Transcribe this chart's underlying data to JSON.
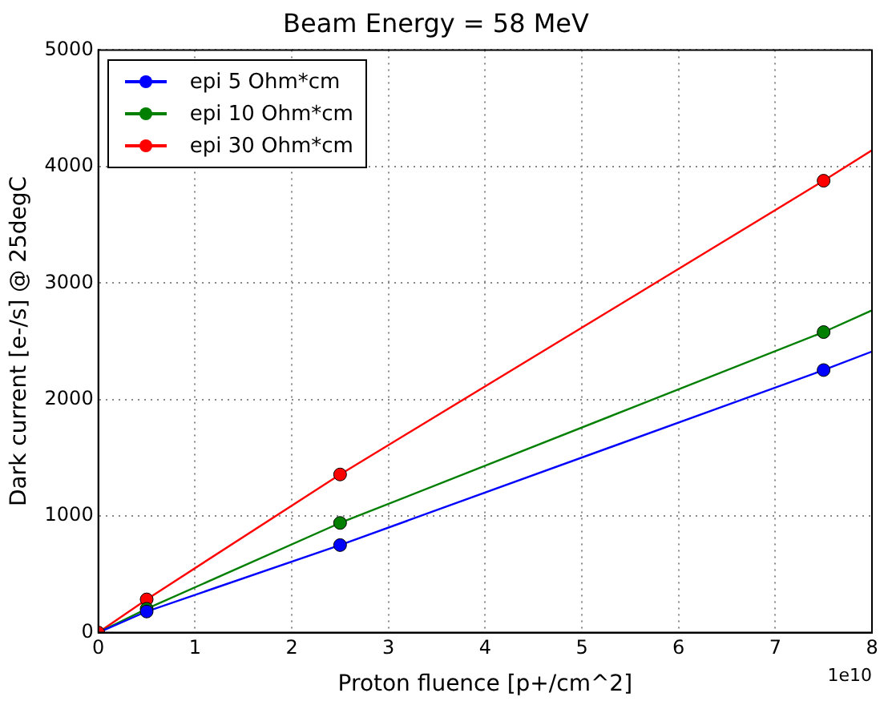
{
  "chart_data": {
    "type": "line",
    "title": "Beam Energy = 58 MeV",
    "xlabel": "Proton fluence [p+/cm^2]",
    "ylabel": "Dark current [e-/s] @ 25degC",
    "xlim": [
      0,
      8
    ],
    "xticks": [
      0,
      1,
      2,
      3,
      4,
      5,
      6,
      7,
      8
    ],
    "ylim": [
      0,
      5000
    ],
    "yticks": [
      0,
      1000,
      2000,
      3000,
      4000,
      5000
    ],
    "grid": true,
    "legend": "top left",
    "annotations": [
      "1e10"
    ],
    "series": [
      {
        "name": "epi 5 Ohm*cm",
        "type": "scatter",
        "color": "#0000ff",
        "marker": "circle",
        "x": [
          0.5,
          2.5,
          7.5
        ],
        "values": [
          181,
          751,
          2253
        ]
      },
      {
        "name": "epi 10 Ohm*cm",
        "type": "scatter",
        "color": "#007f00",
        "marker": "circle",
        "x": [
          0.5,
          2.5,
          7.5
        ],
        "values": [
          204,
          941,
          2579
        ]
      },
      {
        "name": "epi 30 Ohm*cm",
        "type": "scatter",
        "color": "#ff0000",
        "marker": "circle",
        "x": [
          0,
          0.5,
          2.5,
          7.5
        ],
        "values": [
          0,
          285,
          1357,
          3878
        ]
      },
      {
        "color": "#0000ff",
        "marker": "none",
        "x": [
          0,
          0.5,
          2.5,
          7.5,
          8
        ],
        "values": [
          0,
          181,
          751,
          2253,
          2412
        ]
      },
      {
        "color": "#007f00",
        "marker": "none",
        "x": [
          0,
          0.5,
          2.5,
          7.5,
          8
        ],
        "values": [
          0,
          204,
          941,
          2579,
          2765
        ]
      },
      {
        "color": "#ff0000",
        "marker": "none",
        "x": [
          0,
          0.5,
          2.5,
          7.5,
          8
        ],
        "values": [
          0,
          285,
          1357,
          3878,
          4140
        ]
      }
    ]
  }
}
